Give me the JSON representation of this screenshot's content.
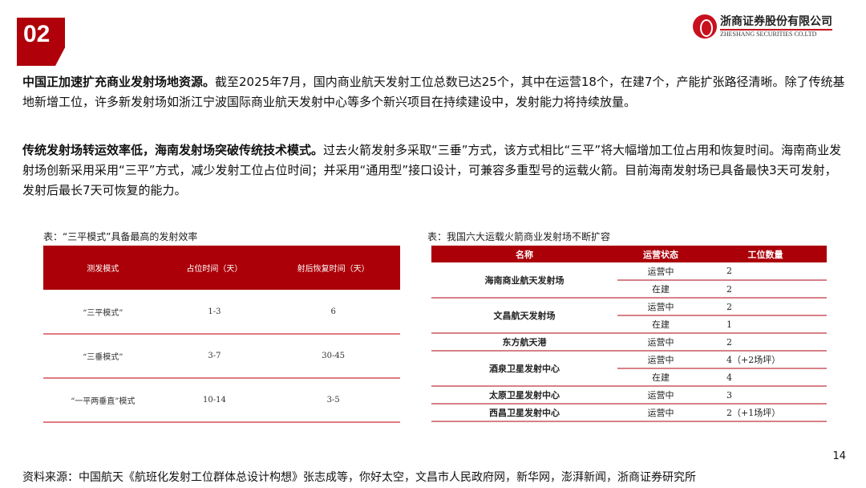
{
  "section_number": "02",
  "logo": {
    "cn": "浙商证券股份有限公司",
    "en": "ZHESHANG SECURITIES CO.LTD"
  },
  "para1": {
    "bold": "中国正加速扩充商业发射场地资源。",
    "text": "截至2025年7月，国内商业航天发射工位总数已达25个，其中在运营18个，在建7个，产能扩张路径清晰。除了传统基地新增工位，许多新发射场如浙江宁波国际商业航天发射中心等多个新兴项目在持续建设中，发射能力将持续放量。"
  },
  "para2": {
    "bold": "传统发射场转运效率低，海南发射场突破传统技术模式。",
    "text": "过去火箭发射多采取“三垂”方式，该方式相比“三平”将大幅增加工位占用和恢复时间。海南商业发射场创新采用采用“三平”方式，减少发射工位占位时间；并采用“通用型”接口设计，可兼容多重型号的运载火箭。目前海南发射场已具备最快3天可发射，发射后最长7天可恢复的能力。"
  },
  "table1": {
    "caption": "表：“三平模式”具备最高的发射效率",
    "headers": [
      "测发模式",
      "占位时间（天）",
      "射后恢复时间（天）"
    ],
    "rows": [
      [
        "“三平模式”",
        "1-3",
        "6"
      ],
      [
        "“三垂模式”",
        "3-7",
        "30-45"
      ],
      [
        "“一平两垂直”模式",
        "10-14",
        "3-5"
      ]
    ]
  },
  "table2": {
    "caption": "表：我国六大运载火箭商业发射场不断扩容",
    "headers": [
      "名称",
      "运营状态",
      "工位数量"
    ],
    "rows": [
      {
        "name": "海南商业航天发射场",
        "entries": [
          [
            "运营中",
            "2"
          ],
          [
            "在建",
            "2"
          ]
        ]
      },
      {
        "name": "文昌航天发射场",
        "entries": [
          [
            "运营中",
            "2"
          ],
          [
            "在建",
            "1"
          ]
        ]
      },
      {
        "name": "东方航天港",
        "entries": [
          [
            "运营中",
            "2"
          ]
        ]
      },
      {
        "name": "酒泉卫星发射中心",
        "entries": [
          [
            "运营中",
            "4（+2场坪）"
          ],
          [
            "在建",
            "4"
          ]
        ]
      },
      {
        "name": "太原卫星发射中心",
        "entries": [
          [
            "运营中",
            "3"
          ]
        ]
      },
      {
        "name": "西昌卫星发射中心",
        "entries": [
          [
            "运营中",
            "2（+1场坪）"
          ]
        ]
      }
    ]
  },
  "page_number": "14",
  "source": "资料来源：中国航天《航班化发射工位群体总设计构想》张志成等，你好太空，文昌市人民政府网，新华网，澎湃新闻，浙商证券研究所"
}
